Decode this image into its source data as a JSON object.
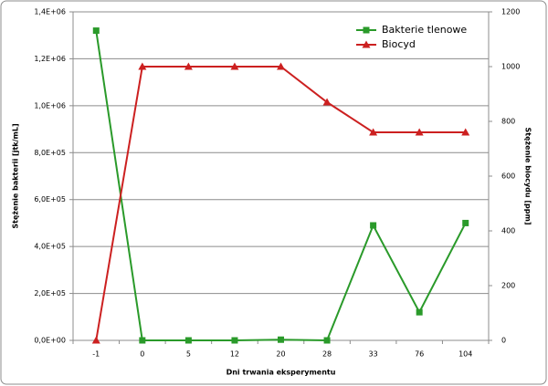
{
  "chart_data": {
    "type": "line",
    "xlabel": "Dni trwania eksperymentu",
    "ylabel": "Stężenie bakterii [jtk/mL]",
    "y2label": "Stężenie biocydu [ppm]",
    "categories": [
      "-1",
      "0",
      "5",
      "12",
      "20",
      "28",
      "33",
      "76",
      "104"
    ],
    "series": [
      {
        "name": "Bakterie tlenowe",
        "color": "#2a9a2a",
        "marker": "square",
        "axis": "y",
        "values": [
          1320000,
          0,
          0,
          0,
          3000,
          0,
          490000,
          120000,
          500000
        ]
      },
      {
        "name": "Biocyd",
        "color": "#cc2020",
        "marker": "triangle",
        "axis": "y2",
        "values": [
          0,
          1000,
          1000,
          1000,
          1000,
          870,
          760,
          760,
          760
        ]
      }
    ],
    "ylim": [
      0,
      1400000
    ],
    "yticks": [
      {
        "value": 0,
        "label": "0,0E+00"
      },
      {
        "value": 200000,
        "label": "2,0E+05"
      },
      {
        "value": 400000,
        "label": "4,0E+05"
      },
      {
        "value": 600000,
        "label": "6,0E+05"
      },
      {
        "value": 800000,
        "label": "8,0E+05"
      },
      {
        "value": 1000000,
        "label": "1,0E+06"
      },
      {
        "value": 1200000,
        "label": "1,2E+06"
      },
      {
        "value": 1400000,
        "label": "1,4E+06"
      }
    ],
    "y2lim": [
      0,
      1200
    ],
    "y2ticks": [
      0,
      200,
      400,
      600,
      800,
      1000,
      1200
    ],
    "grid": true,
    "legend": "top-right"
  }
}
